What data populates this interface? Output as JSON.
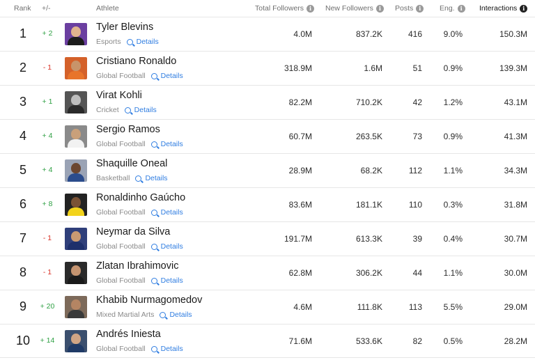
{
  "header": {
    "rank": "Rank",
    "change": "+/-",
    "athlete": "Athlete",
    "total_followers": "Total Followers",
    "new_followers": "New Followers",
    "posts": "Posts",
    "eng": "Eng.",
    "interactions": "Interactions",
    "info_glyph": "i"
  },
  "details_label": "Details",
  "rows": [
    {
      "rank": "1",
      "change": "+ 2",
      "dir": "up",
      "name": "Tyler Blevins",
      "category": "Esports",
      "total": "4.0M",
      "new": "837.2K",
      "posts": "416",
      "eng": "9.0%",
      "interactions": "150.3M",
      "skin": "#e0b38e",
      "shirt": "#1c1c1c",
      "bg": "#6b3fa0"
    },
    {
      "rank": "2",
      "change": "- 1",
      "dir": "down",
      "name": "Cristiano Ronaldo",
      "category": "Global Football",
      "total": "318.9M",
      "new": "1.6M",
      "posts": "51",
      "eng": "0.9%",
      "interactions": "139.3M",
      "skin": "#c8946a",
      "shirt": "#e8742a",
      "bg": "#d4612a"
    },
    {
      "rank": "3",
      "change": "+ 1",
      "dir": "up",
      "name": "Virat Kohli",
      "category": "Cricket",
      "total": "82.2M",
      "new": "710.2K",
      "posts": "42",
      "eng": "1.2%",
      "interactions": "43.1M",
      "skin": "#bdbdbd",
      "shirt": "#2a2a2a",
      "bg": "#555555"
    },
    {
      "rank": "4",
      "change": "+ 4",
      "dir": "up",
      "name": "Sergio Ramos",
      "category": "Global Football",
      "total": "60.7M",
      "new": "263.5K",
      "posts": "73",
      "eng": "0.9%",
      "interactions": "41.3M",
      "skin": "#c9a07a",
      "shirt": "#f2f2f2",
      "bg": "#8a8a8a"
    },
    {
      "rank": "5",
      "change": "+ 4",
      "dir": "up",
      "name": "Shaquille Oneal",
      "category": "Basketball",
      "total": "28.9M",
      "new": "68.2K",
      "posts": "112",
      "eng": "1.1%",
      "interactions": "34.3M",
      "skin": "#6b4630",
      "shirt": "#2b4c8c",
      "bg": "#9aa3b5"
    },
    {
      "rank": "6",
      "change": "+ 8",
      "dir": "up",
      "name": "Ronaldinho Gaúcho",
      "category": "Global Football",
      "total": "83.6M",
      "new": "181.1K",
      "posts": "110",
      "eng": "0.3%",
      "interactions": "31.8M",
      "skin": "#7a5235",
      "shirt": "#f2d31b",
      "bg": "#222222"
    },
    {
      "rank": "7",
      "change": "- 1",
      "dir": "down",
      "name": "Neymar da Silva",
      "category": "Global Football",
      "total": "191.7M",
      "new": "613.3K",
      "posts": "39",
      "eng": "0.4%",
      "interactions": "30.7M",
      "skin": "#c99a72",
      "shirt": "#1d2f6b",
      "bg": "#2f3f7a"
    },
    {
      "rank": "8",
      "change": "- 1",
      "dir": "down",
      "name": "Zlatan Ibrahimovic",
      "category": "Global Football",
      "total": "62.8M",
      "new": "306.2K",
      "posts": "44",
      "eng": "1.1%",
      "interactions": "30.0M",
      "skin": "#c59470",
      "shirt": "#1a1a1a",
      "bg": "#2a2a2a"
    },
    {
      "rank": "9",
      "change": "+ 20",
      "dir": "up",
      "name": "Khabib Nurmagomedov",
      "category": "Mixed Martial Arts",
      "total": "4.6M",
      "new": "111.8K",
      "posts": "113",
      "eng": "5.5%",
      "interactions": "29.0M",
      "skin": "#b58563",
      "shirt": "#3a3a3a",
      "bg": "#7d6a5a"
    },
    {
      "rank": "10",
      "change": "+ 14",
      "dir": "up",
      "name": "Andrés Iniesta",
      "category": "Global Football",
      "total": "71.6M",
      "new": "533.6K",
      "posts": "82",
      "eng": "0.5%",
      "interactions": "28.2M",
      "skin": "#d1a585",
      "shirt": "#1f3a66",
      "bg": "#3b4f6e"
    }
  ]
}
